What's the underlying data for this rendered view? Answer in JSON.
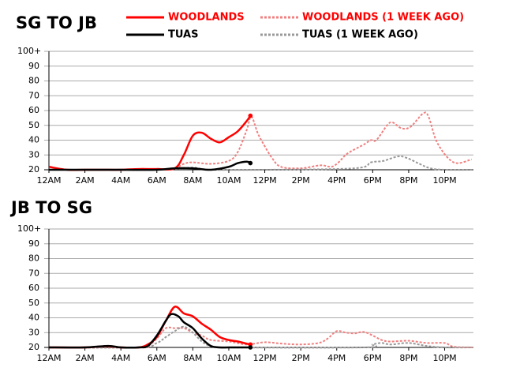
{
  "chart_data": [
    {
      "type": "line",
      "title": "SG TO JB",
      "xlim": [
        0,
        23.6
      ],
      "ylim": [
        20,
        100
      ],
      "xticks": [
        {
          "value": 0,
          "label": "12AM"
        },
        {
          "value": 2,
          "label": "2AM"
        },
        {
          "value": 4,
          "label": "4AM"
        },
        {
          "value": 6,
          "label": "6AM"
        },
        {
          "value": 8,
          "label": "8AM"
        },
        {
          "value": 10,
          "label": "10AM"
        },
        {
          "value": 12,
          "label": "12PM"
        },
        {
          "value": 14,
          "label": "2PM"
        },
        {
          "value": 16,
          "label": "4PM"
        },
        {
          "value": 18,
          "label": "6PM"
        },
        {
          "value": 20,
          "label": "8PM"
        },
        {
          "value": 22,
          "label": "10PM"
        }
      ],
      "yticks": [
        20,
        30,
        40,
        50,
        60,
        70,
        80,
        90,
        {
          "value": 100,
          "label": "100+"
        }
      ],
      "grid": true,
      "series": [
        {
          "name": "WOODLANDS",
          "color": "#ff0000",
          "dashed": false,
          "x": [
            0,
            1,
            2,
            3,
            4,
            5,
            6,
            7,
            7.5,
            8,
            8.5,
            9,
            9.5,
            10,
            10.5,
            11,
            11.2
          ],
          "values": [
            22,
            20,
            20,
            20,
            20,
            20.5,
            20.5,
            21,
            30,
            43,
            45,
            41,
            38.5,
            42,
            46,
            53,
            56.5
          ]
        },
        {
          "name": "TUAS",
          "color": "#000000",
          "dashed": false,
          "x": [
            0,
            2,
            4,
            6,
            7,
            8,
            9,
            10,
            10.5,
            11,
            11.2
          ],
          "values": [
            20,
            20,
            20,
            20,
            21,
            21,
            20,
            22,
            24.5,
            25.5,
            24.5
          ]
        },
        {
          "name": "WOODLANDS (1 WEEK AGO)",
          "color": "#f08080",
          "dashed": true,
          "x": [
            0,
            3,
            6,
            7,
            7.5,
            8,
            9,
            10,
            10.5,
            11,
            11.25,
            11.6,
            11.9,
            12.4,
            12.9,
            14,
            15.1,
            15.7,
            16.1,
            16.6,
            17.5,
            17.9,
            18.2,
            18.8,
            19.1,
            19.6,
            20.1,
            20.8,
            21.1,
            21.6,
            22.5,
            23.5
          ],
          "values": [
            20,
            20,
            20,
            21,
            24,
            25,
            24,
            26,
            32,
            47,
            56,
            45,
            38,
            28,
            22,
            21,
            23,
            22,
            25,
            31,
            37,
            40,
            40,
            50,
            52,
            48,
            49,
            58,
            56,
            38,
            25,
            27
          ]
        },
        {
          "name": "TUAS (1 WEEK AGO)",
          "color": "#999999",
          "dashed": true,
          "x": [
            0,
            4,
            7,
            8,
            9,
            12,
            17,
            17.9,
            18.6,
            19.4,
            19.9,
            20.6,
            21.2,
            22,
            23.6
          ],
          "values": [
            20,
            20,
            20.5,
            21.5,
            20,
            20,
            21,
            25,
            26,
            29,
            28,
            24,
            21,
            20,
            20
          ]
        }
      ]
    },
    {
      "type": "line",
      "title": "JB TO SG",
      "xlim": [
        0,
        23.6
      ],
      "ylim": [
        20,
        100
      ],
      "xticks": [
        {
          "value": 0,
          "label": "12AM"
        },
        {
          "value": 2,
          "label": "2AM"
        },
        {
          "value": 4,
          "label": "4AM"
        },
        {
          "value": 6,
          "label": "6AM"
        },
        {
          "value": 8,
          "label": "8AM"
        },
        {
          "value": 10,
          "label": "10AM"
        },
        {
          "value": 12,
          "label": "12PM"
        },
        {
          "value": 14,
          "label": "2PM"
        },
        {
          "value": 16,
          "label": "4PM"
        },
        {
          "value": 18,
          "label": "6PM"
        },
        {
          "value": 20,
          "label": "8PM"
        },
        {
          "value": 22,
          "label": "10PM"
        }
      ],
      "yticks": [
        20,
        30,
        40,
        50,
        60,
        70,
        80,
        90,
        {
          "value": 100,
          "label": "100+"
        }
      ],
      "grid": true,
      "series": [
        {
          "name": "WOODLANDS",
          "color": "#ff0000",
          "dashed": false,
          "x": [
            0,
            2,
            3.2,
            4,
            5,
            5.5,
            6,
            6.5,
            7,
            7.5,
            8,
            8.5,
            9,
            9.5,
            10,
            10.5,
            11,
            11.2
          ],
          "values": [
            20,
            20,
            20.8,
            20,
            20,
            22,
            27,
            38,
            47.5,
            43,
            41,
            36,
            32,
            27,
            25,
            24,
            22.5,
            22
          ]
        },
        {
          "name": "TUAS",
          "color": "#000000",
          "dashed": false,
          "x": [
            0,
            2,
            3.3,
            4,
            5,
            5.5,
            6,
            6.5,
            6.8,
            7.2,
            7.5,
            8,
            8.5,
            9,
            9.5,
            10,
            11.2
          ],
          "values": [
            20,
            20,
            21,
            20,
            20,
            21,
            28,
            38,
            42.5,
            41,
            37,
            33,
            26,
            21,
            20,
            20,
            20
          ]
        },
        {
          "name": "WOODLANDS (1 WEEK AGO)",
          "color": "#f08080",
          "dashed": true,
          "x": [
            0,
            5,
            5.5,
            6,
            6.5,
            7,
            7.5,
            8,
            8.5,
            9,
            10,
            11,
            12,
            13,
            14,
            15,
            15.5,
            16,
            16.5,
            17,
            17.5,
            18,
            18.5,
            19,
            20,
            21,
            22,
            22.5,
            23.6
          ],
          "values": [
            20,
            20,
            21,
            26,
            33,
            33,
            33,
            30,
            28,
            25,
            24,
            22,
            23.5,
            22.5,
            22,
            23,
            26,
            31,
            30,
            29.5,
            30.5,
            28,
            25,
            24,
            24.5,
            23,
            23,
            20.5,
            20
          ]
        },
        {
          "name": "TUAS (1 WEEK AGO)",
          "color": "#999999",
          "dashed": true,
          "x": [
            0,
            5,
            6,
            6.5,
            7,
            7.5,
            8,
            8.5,
            9,
            10,
            17.5,
            18,
            18.5,
            19,
            20,
            21,
            22,
            23.6
          ],
          "values": [
            20,
            20,
            23,
            27,
            31,
            34,
            30,
            24,
            21,
            20,
            20,
            22,
            23,
            22,
            23,
            21,
            20,
            20
          ]
        }
      ]
    }
  ]
}
